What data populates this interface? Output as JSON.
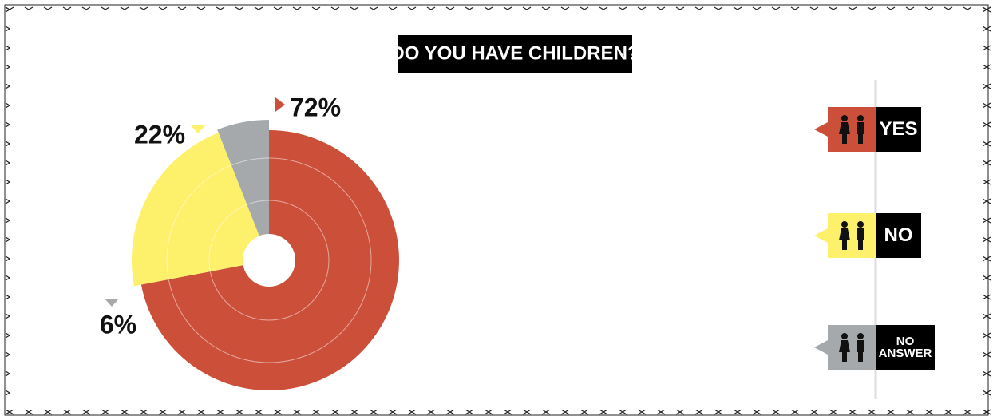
{
  "chart_data": {
    "type": "pie",
    "title": "DO YOU HAVE CHILDREN?",
    "categories": [
      "YES",
      "NO",
      "NO ANSWER"
    ],
    "values": [
      72,
      22,
      6
    ],
    "value_labels": [
      "72%",
      "22%",
      "6%"
    ],
    "colors": [
      "#cc4f3a",
      "#fdf06a",
      "#a5a9ac"
    ]
  }
}
